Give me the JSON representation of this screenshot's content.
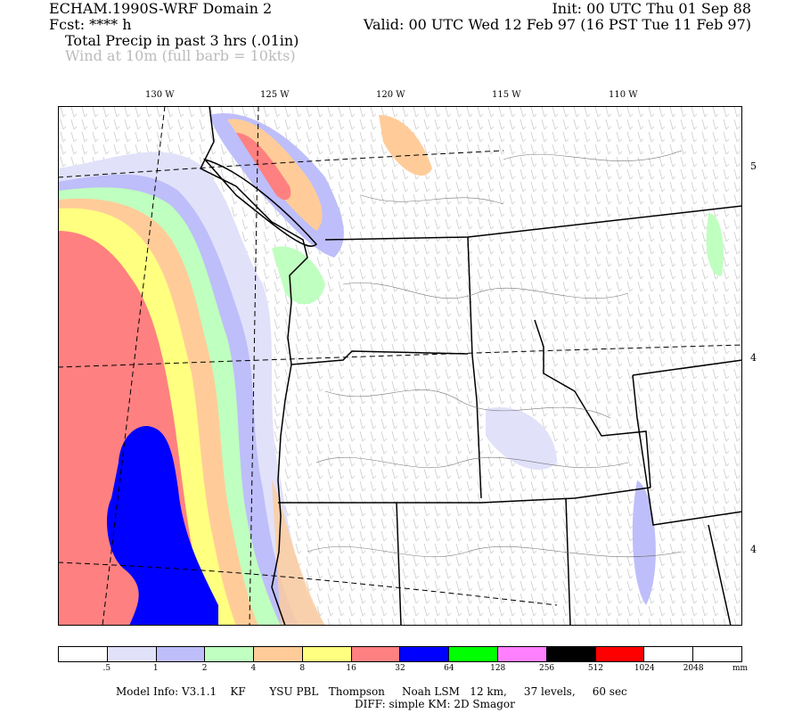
{
  "header": {
    "model": "ECHAM.1990S-WRF Domain 2",
    "init": "Init: 00 UTC Thu 01 Sep 88",
    "fcst": "Fcst: **** h",
    "valid": "Valid: 00 UTC Wed 12 Feb 97 (16 PST Tue 11 Feb 97)",
    "field1": "Total Precip in past 3 hrs (.01in)",
    "field2": "Wind at 10m (full barb = 10kts)"
  },
  "map": {
    "lon_labels": [
      "130 W",
      "125 W",
      "120 W",
      "115 W",
      "110 W"
    ],
    "lat_labels": [
      "5",
      "4",
      "4"
    ],
    "region": "Pacific Northwest"
  },
  "colorbar": {
    "colors": [
      "#ffffff",
      "#e1e1fa",
      "#bebefa",
      "#bfffbf",
      "#ffcc99",
      "#ffff80",
      "#ff8080",
      "#0000ff",
      "#00ff00",
      "#ff80ff",
      "#000000",
      "#ff0000",
      "#ffffff",
      "#ffffff"
    ],
    "labels": [
      ".5",
      "1",
      "2",
      "4",
      "8",
      "16",
      "32",
      "64",
      "128",
      "256",
      "512",
      "1024",
      "2048"
    ],
    "unit": "mm"
  },
  "footer": {
    "line1": "Model Info: V3.1.1    KF       YSU PBL   Thompson     Noah LSM   12 km,     37 levels,     60 sec",
    "line2": "DIFF: simple KM: 2D Smagor"
  }
}
